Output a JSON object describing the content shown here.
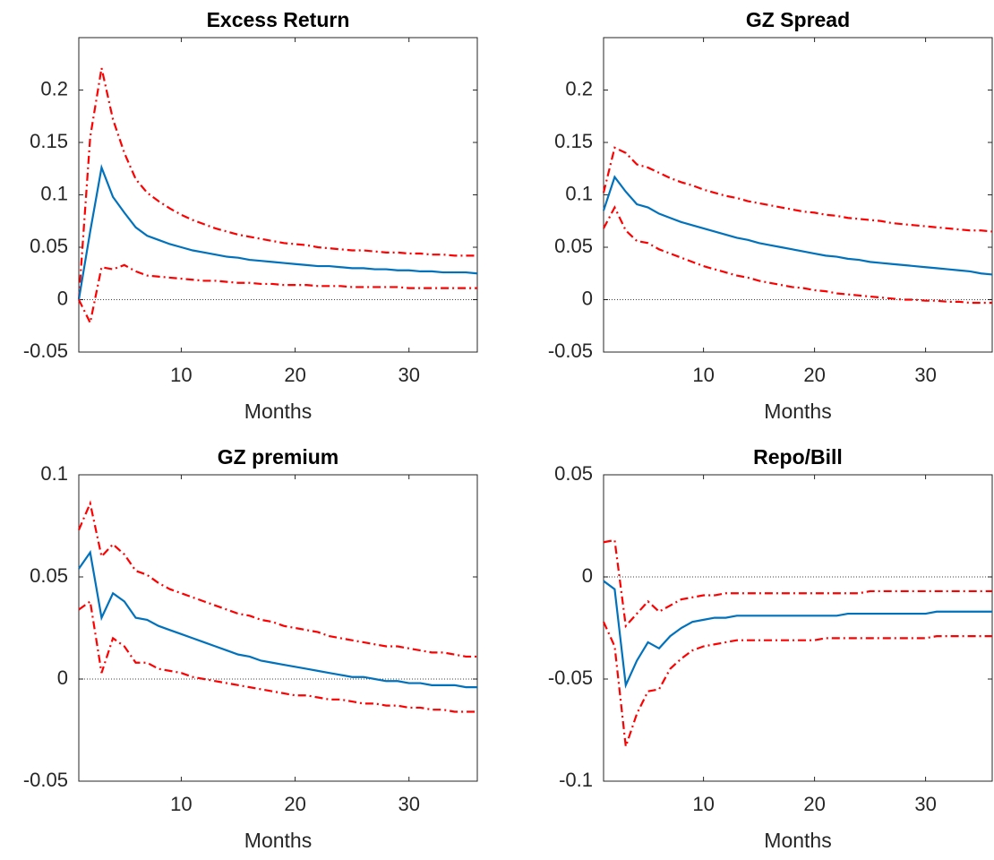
{
  "chart_data": [
    {
      "type": "line",
      "title": "Excess Return",
      "x_label": "Months",
      "x": [
        1,
        2,
        3,
        4,
        5,
        6,
        7,
        8,
        9,
        10,
        11,
        12,
        13,
        14,
        15,
        16,
        17,
        18,
        19,
        20,
        21,
        22,
        23,
        24,
        25,
        26,
        27,
        28,
        29,
        30,
        31,
        32,
        33,
        34,
        35,
        36
      ],
      "xlim": [
        1,
        36
      ],
      "xticks": [
        10,
        20,
        30
      ],
      "ylim": [
        -0.05,
        0.25
      ],
      "yticks": [
        -0.05,
        0,
        0.05,
        0.1,
        0.15,
        0.2
      ],
      "zero_line": true,
      "series": [
        {
          "color": "#ff0000",
          "style": "dashdot",
          "values": [
            0,
            0.155,
            0.221,
            0.172,
            0.14,
            0.115,
            0.102,
            0.094,
            0.087,
            0.081,
            0.076,
            0.072,
            0.068,
            0.065,
            0.062,
            0.06,
            0.058,
            0.056,
            0.054,
            0.053,
            0.052,
            0.05,
            0.049,
            0.048,
            0.047,
            0.047,
            0.046,
            0.045,
            0.045,
            0.044,
            0.044,
            0.043,
            0.043,
            0.042,
            0.042,
            0.042
          ]
        },
        {
          "color": "#0072bd",
          "style": "solid",
          "values": [
            0,
            0.065,
            0.126,
            0.098,
            0.083,
            0.069,
            0.061,
            0.057,
            0.053,
            0.05,
            0.047,
            0.045,
            0.043,
            0.041,
            0.04,
            0.038,
            0.037,
            0.036,
            0.035,
            0.034,
            0.033,
            0.032,
            0.032,
            0.031,
            0.03,
            0.03,
            0.029,
            0.029,
            0.028,
            0.028,
            0.027,
            0.027,
            0.026,
            0.026,
            0.026,
            0.025
          ]
        },
        {
          "color": "#ff0000",
          "style": "dashdot",
          "values": [
            0,
            -0.022,
            0.031,
            0.029,
            0.033,
            0.027,
            0.023,
            0.022,
            0.021,
            0.02,
            0.019,
            0.018,
            0.018,
            0.017,
            0.016,
            0.016,
            0.015,
            0.015,
            0.014,
            0.014,
            0.014,
            0.013,
            0.013,
            0.013,
            0.012,
            0.012,
            0.012,
            0.012,
            0.012,
            0.011,
            0.011,
            0.011,
            0.011,
            0.011,
            0.011,
            0.011
          ]
        }
      ]
    },
    {
      "type": "line",
      "title": "GZ Spread",
      "x_label": "Months",
      "x": [
        1,
        2,
        3,
        4,
        5,
        6,
        7,
        8,
        9,
        10,
        11,
        12,
        13,
        14,
        15,
        16,
        17,
        18,
        19,
        20,
        21,
        22,
        23,
        24,
        25,
        26,
        27,
        28,
        29,
        30,
        31,
        32,
        33,
        34,
        35,
        36
      ],
      "xlim": [
        1,
        36
      ],
      "xticks": [
        10,
        20,
        30
      ],
      "ylim": [
        -0.05,
        0.25
      ],
      "yticks": [
        -0.05,
        0,
        0.05,
        0.1,
        0.15,
        0.2
      ],
      "zero_line": true,
      "series": [
        {
          "color": "#ff0000",
          "style": "dashdot",
          "values": [
            0.102,
            0.145,
            0.14,
            0.129,
            0.126,
            0.121,
            0.116,
            0.112,
            0.109,
            0.105,
            0.102,
            0.099,
            0.097,
            0.094,
            0.092,
            0.09,
            0.088,
            0.086,
            0.084,
            0.083,
            0.081,
            0.08,
            0.078,
            0.077,
            0.076,
            0.075,
            0.073,
            0.072,
            0.071,
            0.07,
            0.069,
            0.068,
            0.067,
            0.066,
            0.066,
            0.065
          ]
        },
        {
          "color": "#0072bd",
          "style": "solid",
          "values": [
            0.085,
            0.117,
            0.103,
            0.091,
            0.088,
            0.082,
            0.078,
            0.074,
            0.071,
            0.068,
            0.065,
            0.062,
            0.059,
            0.057,
            0.054,
            0.052,
            0.05,
            0.048,
            0.046,
            0.044,
            0.042,
            0.041,
            0.039,
            0.038,
            0.036,
            0.035,
            0.034,
            0.033,
            0.032,
            0.031,
            0.03,
            0.029,
            0.028,
            0.027,
            0.025,
            0.024
          ]
        },
        {
          "color": "#ff0000",
          "style": "dashdot",
          "values": [
            0.068,
            0.088,
            0.066,
            0.056,
            0.054,
            0.048,
            0.044,
            0.04,
            0.036,
            0.032,
            0.029,
            0.026,
            0.023,
            0.021,
            0.018,
            0.016,
            0.014,
            0.012,
            0.011,
            0.009,
            0.008,
            0.006,
            0.005,
            0.004,
            0.003,
            0.002,
            0.001,
            0,
            0,
            -0.001,
            -0.001,
            -0.002,
            -0.002,
            -0.003,
            -0.003,
            -0.003
          ]
        }
      ]
    },
    {
      "type": "line",
      "title": "GZ premium",
      "x_label": "Months",
      "x": [
        1,
        2,
        3,
        4,
        5,
        6,
        7,
        8,
        9,
        10,
        11,
        12,
        13,
        14,
        15,
        16,
        17,
        18,
        19,
        20,
        21,
        22,
        23,
        24,
        25,
        26,
        27,
        28,
        29,
        30,
        31,
        32,
        33,
        34,
        35,
        36
      ],
      "xlim": [
        1,
        36
      ],
      "xticks": [
        10,
        20,
        30
      ],
      "ylim": [
        -0.05,
        0.1
      ],
      "yticks": [
        -0.05,
        0,
        0.05,
        0.1
      ],
      "zero_line": true,
      "series": [
        {
          "color": "#ff0000",
          "style": "dashdot",
          "values": [
            0.073,
            0.086,
            0.06,
            0.066,
            0.061,
            0.053,
            0.051,
            0.047,
            0.044,
            0.042,
            0.04,
            0.038,
            0.036,
            0.034,
            0.032,
            0.031,
            0.029,
            0.028,
            0.026,
            0.025,
            0.024,
            0.023,
            0.021,
            0.02,
            0.019,
            0.018,
            0.017,
            0.016,
            0.016,
            0.015,
            0.014,
            0.013,
            0.013,
            0.012,
            0.011,
            0.011
          ]
        },
        {
          "color": "#0072bd",
          "style": "solid",
          "values": [
            0.054,
            0.062,
            0.03,
            0.042,
            0.038,
            0.03,
            0.029,
            0.026,
            0.024,
            0.022,
            0.02,
            0.018,
            0.016,
            0.014,
            0.012,
            0.011,
            0.009,
            0.008,
            0.007,
            0.006,
            0.005,
            0.004,
            0.003,
            0.002,
            0.001,
            0.001,
            0,
            -0.001,
            -0.001,
            -0.002,
            -0.002,
            -0.003,
            -0.003,
            -0.003,
            -0.004,
            -0.004
          ]
        },
        {
          "color": "#ff0000",
          "style": "dashdot",
          "values": [
            0.034,
            0.038,
            0.003,
            0.02,
            0.016,
            0.008,
            0.008,
            0.005,
            0.004,
            0.003,
            0.001,
            0,
            -0.001,
            -0.002,
            -0.003,
            -0.004,
            -0.005,
            -0.006,
            -0.007,
            -0.008,
            -0.008,
            -0.009,
            -0.01,
            -0.01,
            -0.011,
            -0.012,
            -0.012,
            -0.013,
            -0.013,
            -0.014,
            -0.014,
            -0.015,
            -0.015,
            -0.016,
            -0.016,
            -0.016
          ]
        }
      ]
    },
    {
      "type": "line",
      "title": "Repo/Bill",
      "x_label": "Months",
      "x": [
        1,
        2,
        3,
        4,
        5,
        6,
        7,
        8,
        9,
        10,
        11,
        12,
        13,
        14,
        15,
        16,
        17,
        18,
        19,
        20,
        21,
        22,
        23,
        24,
        25,
        26,
        27,
        28,
        29,
        30,
        31,
        32,
        33,
        34,
        35,
        36
      ],
      "xlim": [
        1,
        36
      ],
      "xticks": [
        10,
        20,
        30
      ],
      "ylim": [
        -0.1,
        0.05
      ],
      "yticks": [
        -0.1,
        -0.05,
        0,
        0.05
      ],
      "zero_line": true,
      "series": [
        {
          "color": "#ff0000",
          "style": "dashdot",
          "values": [
            0.017,
            0.018,
            -0.024,
            -0.018,
            -0.012,
            -0.017,
            -0.014,
            -0.011,
            -0.01,
            -0.009,
            -0.009,
            -0.008,
            -0.008,
            -0.008,
            -0.008,
            -0.008,
            -0.008,
            -0.008,
            -0.008,
            -0.008,
            -0.008,
            -0.008,
            -0.008,
            -0.008,
            -0.007,
            -0.007,
            -0.007,
            -0.007,
            -0.007,
            -0.007,
            -0.007,
            -0.007,
            -0.007,
            -0.007,
            -0.007,
            -0.007
          ]
        },
        {
          "color": "#0072bd",
          "style": "solid",
          "values": [
            -0.002,
            -0.006,
            -0.053,
            -0.041,
            -0.032,
            -0.035,
            -0.029,
            -0.025,
            -0.022,
            -0.021,
            -0.02,
            -0.02,
            -0.019,
            -0.019,
            -0.019,
            -0.019,
            -0.019,
            -0.019,
            -0.019,
            -0.019,
            -0.019,
            -0.019,
            -0.018,
            -0.018,
            -0.018,
            -0.018,
            -0.018,
            -0.018,
            -0.018,
            -0.018,
            -0.017,
            -0.017,
            -0.017,
            -0.017,
            -0.017,
            -0.017
          ]
        },
        {
          "color": "#ff0000",
          "style": "dashdot",
          "values": [
            -0.022,
            -0.034,
            -0.083,
            -0.067,
            -0.056,
            -0.055,
            -0.045,
            -0.04,
            -0.036,
            -0.034,
            -0.033,
            -0.032,
            -0.031,
            -0.031,
            -0.031,
            -0.031,
            -0.031,
            -0.031,
            -0.031,
            -0.031,
            -0.03,
            -0.03,
            -0.03,
            -0.03,
            -0.03,
            -0.03,
            -0.03,
            -0.03,
            -0.03,
            -0.03,
            -0.029,
            -0.029,
            -0.029,
            -0.029,
            -0.029,
            -0.029
          ]
        }
      ]
    }
  ]
}
